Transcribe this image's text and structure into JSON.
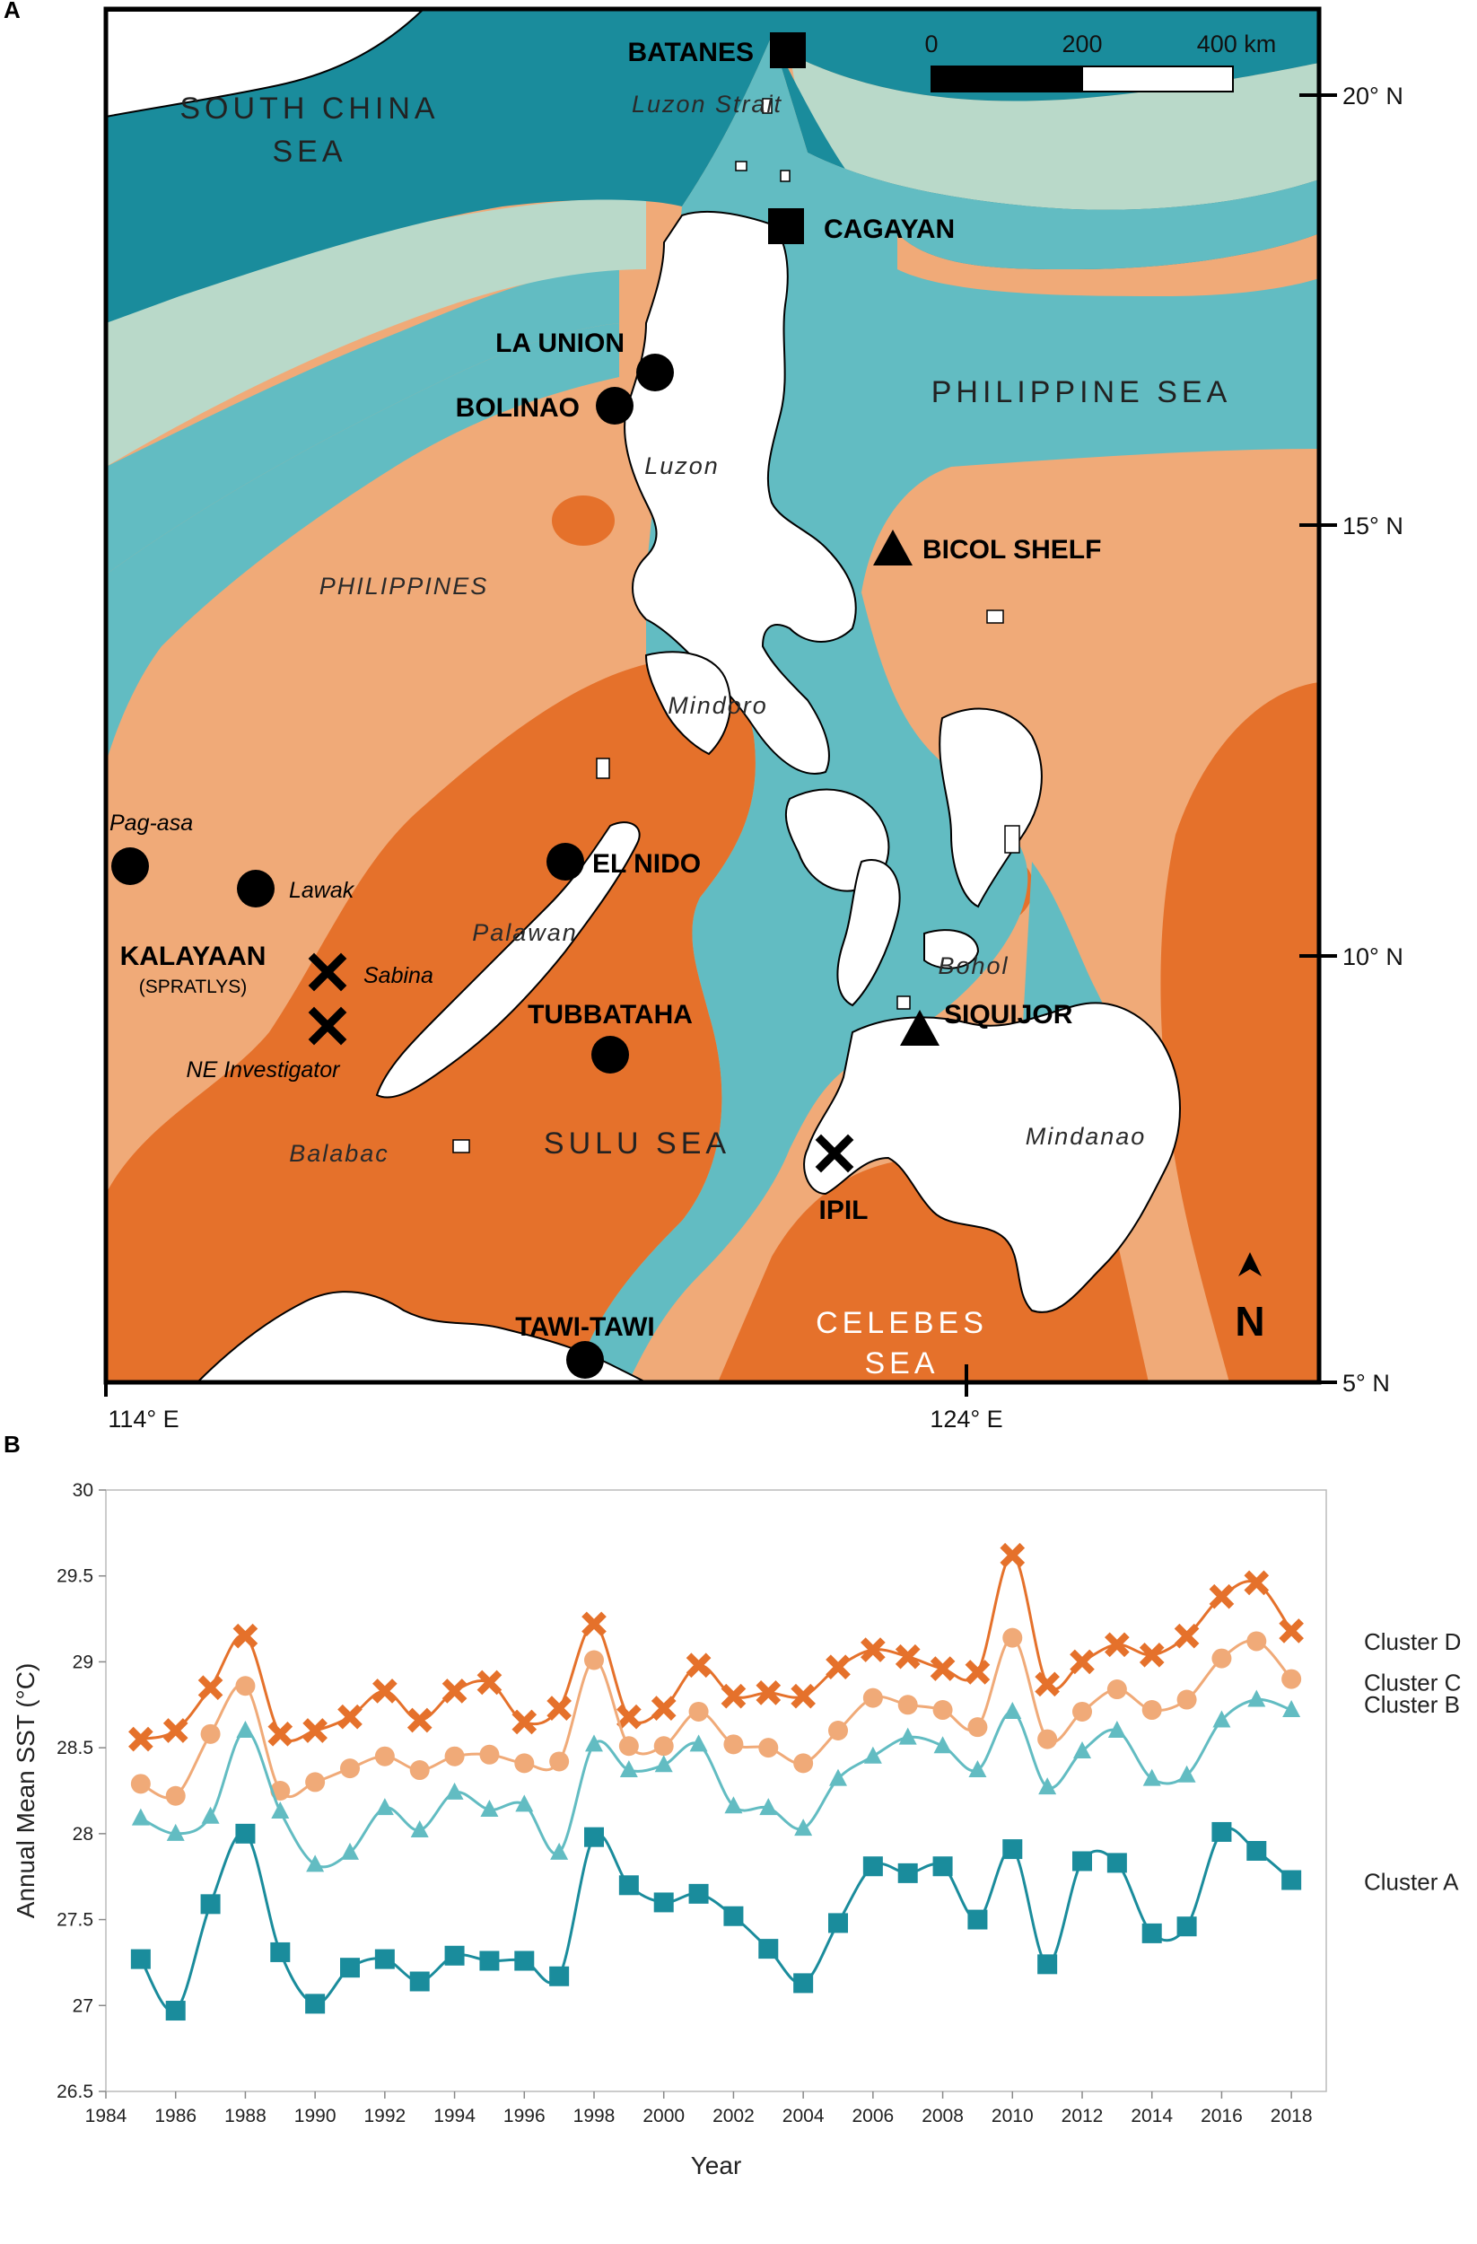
{
  "panels": {
    "a_label": "A",
    "b_label": "B"
  },
  "map": {
    "sea_labels": {
      "south_china_sea_line1": "SOUTH CHINA",
      "south_china_sea_line2": "SEA",
      "philippine_sea": "PHILIPPINE SEA",
      "sulu_sea": "SULU SEA",
      "celebes_sea_line1": "CELEBES",
      "celebes_sea_line2": "SEA",
      "philippines": "PHILIPPINES"
    },
    "place_labels": {
      "luzon_strait": "Luzon Strait",
      "luzon": "Luzon",
      "mindoro": "Mindoro",
      "palawan": "Palawan",
      "balabac": "Balabac",
      "bohol": "Bohol",
      "mindanao": "Mindanao"
    },
    "sites": {
      "batanes": "BATANES",
      "cagayan": "CAGAYAN",
      "la_union": "LA UNION",
      "bolinao": "BOLINAO",
      "bicol_shelf": "BICOL SHELF",
      "el_nido": "EL NIDO",
      "tubbataha": "TUBBATAHA",
      "siquijor": "SIQUIJOR",
      "ipil": "IPIL",
      "tawi_tawi": "TAWI-TAWI",
      "kalayaan": "KALAYAAN",
      "spratlys": "(SPRATLYS)",
      "pag_asa": "Pag-asa",
      "lawak": "Lawak",
      "sabina": "Sabina",
      "ne_investigator": "NE Investigator"
    },
    "scale_bar": {
      "t0": "0",
      "t1": "200",
      "t2": "400 km"
    },
    "lat_ticks": [
      "20° N",
      "15° N",
      "10° N",
      "5° N"
    ],
    "lon_ticks": [
      "114° E",
      "124° E"
    ],
    "north_label": "N",
    "colors": {
      "cluster_a": "#1a8c9c",
      "cluster_b": "#62bcc2",
      "cluster_c": "#f0aa78",
      "cluster_d": "#e5712b",
      "light_green": "#b9d9c9",
      "land": "#ffffff"
    }
  },
  "chart_data": {
    "type": "line",
    "x": [
      1985,
      1986,
      1987,
      1988,
      1989,
      1990,
      1991,
      1992,
      1993,
      1994,
      1995,
      1996,
      1997,
      1998,
      1999,
      2000,
      2001,
      2002,
      2003,
      2004,
      2005,
      2006,
      2007,
      2008,
      2009,
      2010,
      2011,
      2012,
      2013,
      2014,
      2015,
      2016,
      2017,
      2018
    ],
    "series": [
      {
        "name": "Cluster D",
        "marker": "x",
        "color": "#e5712b",
        "values": [
          28.55,
          28.6,
          28.85,
          29.15,
          28.58,
          28.6,
          28.68,
          28.83,
          28.66,
          28.83,
          28.88,
          28.65,
          28.73,
          29.22,
          28.68,
          28.73,
          28.98,
          28.8,
          28.82,
          28.8,
          28.97,
          29.07,
          29.03,
          28.96,
          28.94,
          29.62,
          28.87,
          29.0,
          29.1,
          29.04,
          29.15,
          29.38,
          29.46,
          29.18
        ]
      },
      {
        "name": "Cluster C",
        "marker": "circle",
        "color": "#f0aa78",
        "values": [
          28.29,
          28.22,
          28.58,
          28.86,
          28.25,
          28.3,
          28.38,
          28.45,
          28.37,
          28.45,
          28.46,
          28.41,
          28.42,
          29.01,
          28.51,
          28.51,
          28.71,
          28.52,
          28.5,
          28.41,
          28.6,
          28.79,
          28.75,
          28.72,
          28.62,
          29.14,
          28.55,
          28.71,
          28.84,
          28.72,
          28.78,
          29.02,
          29.12,
          28.9
        ]
      },
      {
        "name": "Cluster B",
        "marker": "triangle",
        "color": "#62bcc2",
        "values": [
          28.09,
          28.0,
          28.1,
          28.6,
          28.13,
          27.82,
          27.89,
          28.15,
          28.02,
          28.24,
          28.14,
          28.17,
          27.89,
          28.52,
          28.37,
          28.4,
          28.52,
          28.16,
          28.15,
          28.03,
          28.32,
          28.45,
          28.56,
          28.51,
          28.37,
          28.71,
          28.27,
          28.48,
          28.6,
          28.32,
          28.34,
          28.66,
          28.78,
          28.72
        ]
      },
      {
        "name": "Cluster A",
        "marker": "square",
        "color": "#1a8c9c",
        "values": [
          27.27,
          26.97,
          27.59,
          28.0,
          27.31,
          27.01,
          27.22,
          27.27,
          27.14,
          27.29,
          27.26,
          27.26,
          27.17,
          27.98,
          27.7,
          27.6,
          27.65,
          27.52,
          27.33,
          27.13,
          27.48,
          27.81,
          27.77,
          27.81,
          27.5,
          27.91,
          27.24,
          27.84,
          27.83,
          27.42,
          27.46,
          28.01,
          27.9,
          27.73
        ]
      }
    ],
    "xlabel": "Year",
    "ylabel": "Annual Mean SST (°C)",
    "ylim": [
      26.5,
      30
    ],
    "xlim": [
      1984,
      2019
    ],
    "yticks": [
      "26.5",
      "27",
      "27.5",
      "28",
      "28.5",
      "29",
      "29.5",
      "30"
    ],
    "xticks": [
      "1984",
      "1986",
      "1988",
      "1990",
      "1992",
      "1994",
      "1996",
      "1998",
      "2000",
      "2002",
      "2004",
      "2006",
      "2008",
      "2010",
      "2012",
      "2014",
      "2016",
      "2018"
    ],
    "legend": [
      "Cluster D",
      "Cluster C",
      "Cluster B",
      "Cluster A"
    ],
    "legend_placement": "right"
  }
}
